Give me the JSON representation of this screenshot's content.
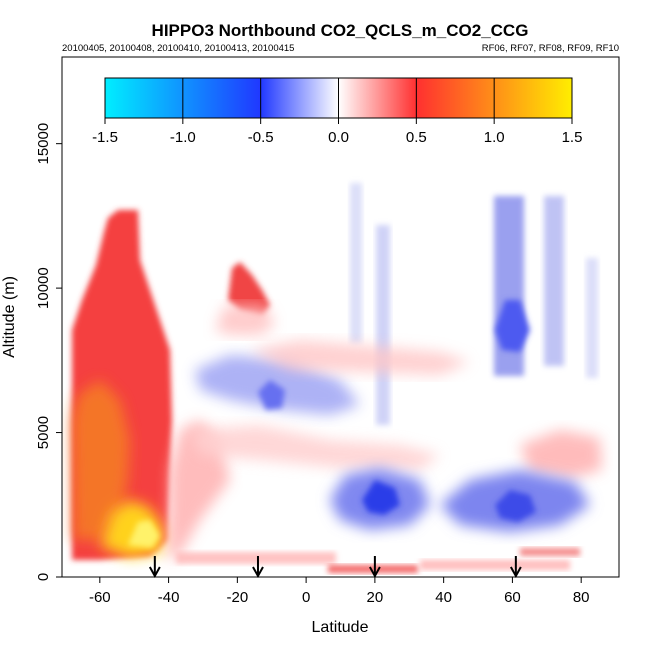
{
  "chart_data": {
    "type": "heatmap",
    "title": "HIPPO3 Northbound CO2_QCLS_m_CO2_CCG",
    "subtitle_left": "20100405, 20100408, 20100410, 20100413, 20100415",
    "subtitle_right": "RF06, RF07, RF08, RF09, RF10",
    "xlabel": "Latitude",
    "ylabel": "Altitude (m)",
    "xlim": [
      -71,
      91
    ],
    "ylim": [
      0,
      18000
    ],
    "x_ticks": [
      -60,
      -40,
      -20,
      0,
      20,
      40,
      60,
      80
    ],
    "x_tick_labels": [
      "-60",
      "-40",
      "-20",
      "0",
      "20",
      "40",
      "60",
      "80"
    ],
    "y_ticks": [
      0,
      5000,
      10000,
      15000
    ],
    "y_tick_labels": [
      "0",
      "5000",
      "10000",
      "15000"
    ],
    "colorbar": {
      "range": [
        -1.5,
        1.5
      ],
      "ticks": [
        -1.5,
        -1.0,
        -0.5,
        0.0,
        0.5,
        1.0,
        1.5
      ],
      "tick_labels": [
        "-1.5",
        "-1.0",
        "-0.5",
        "0.0",
        "0.5",
        "1.0",
        "1.5"
      ],
      "colors": [
        "#00eeff",
        "#3050ff",
        "#ffffff",
        "#ff3030",
        "#ffee00"
      ]
    },
    "flight_arrows_latitude": [
      -44,
      -14,
      20,
      61
    ],
    "regions": [
      {
        "name": "southern-high-positive",
        "lat": [
          -67,
          -40
        ],
        "alt": [
          500,
          12800
        ],
        "value": 0.75
      },
      {
        "name": "southern-surface-max",
        "lat": [
          -55,
          -40
        ],
        "alt": [
          800,
          3000
        ],
        "value": 1.3
      },
      {
        "name": "southern-midlevel-orange",
        "lat": [
          -67,
          -45
        ],
        "alt": [
          2000,
          6500
        ],
        "value": 0.95
      },
      {
        "name": "subtropical-plume",
        "lat": [
          -26,
          -16
        ],
        "alt": [
          8500,
          11000
        ],
        "value": 0.6
      },
      {
        "name": "tropical-upper-negative",
        "lat": [
          -20,
          10
        ],
        "alt": [
          5500,
          9000
        ],
        "value": -0.2
      },
      {
        "name": "equatorial-lower-negative",
        "lat": [
          12,
          35
        ],
        "alt": [
          1500,
          4000
        ],
        "value": -0.45
      },
      {
        "name": "northern-mid-negative",
        "lat": [
          40,
          80
        ],
        "alt": [
          1500,
          5000
        ],
        "value": -0.3
      },
      {
        "name": "northern-upper-negative",
        "lat": [
          50,
          65
        ],
        "alt": [
          6500,
          13300
        ],
        "value": -0.3
      },
      {
        "name": "northern-positive-band",
        "lat": [
          58,
          82
        ],
        "alt": [
          3500,
          6500
        ],
        "value": 0.2
      },
      {
        "name": "surface-positive-strip",
        "lat": [
          -40,
          75
        ],
        "alt": [
          0,
          800
        ],
        "value": 0.3
      }
    ]
  }
}
